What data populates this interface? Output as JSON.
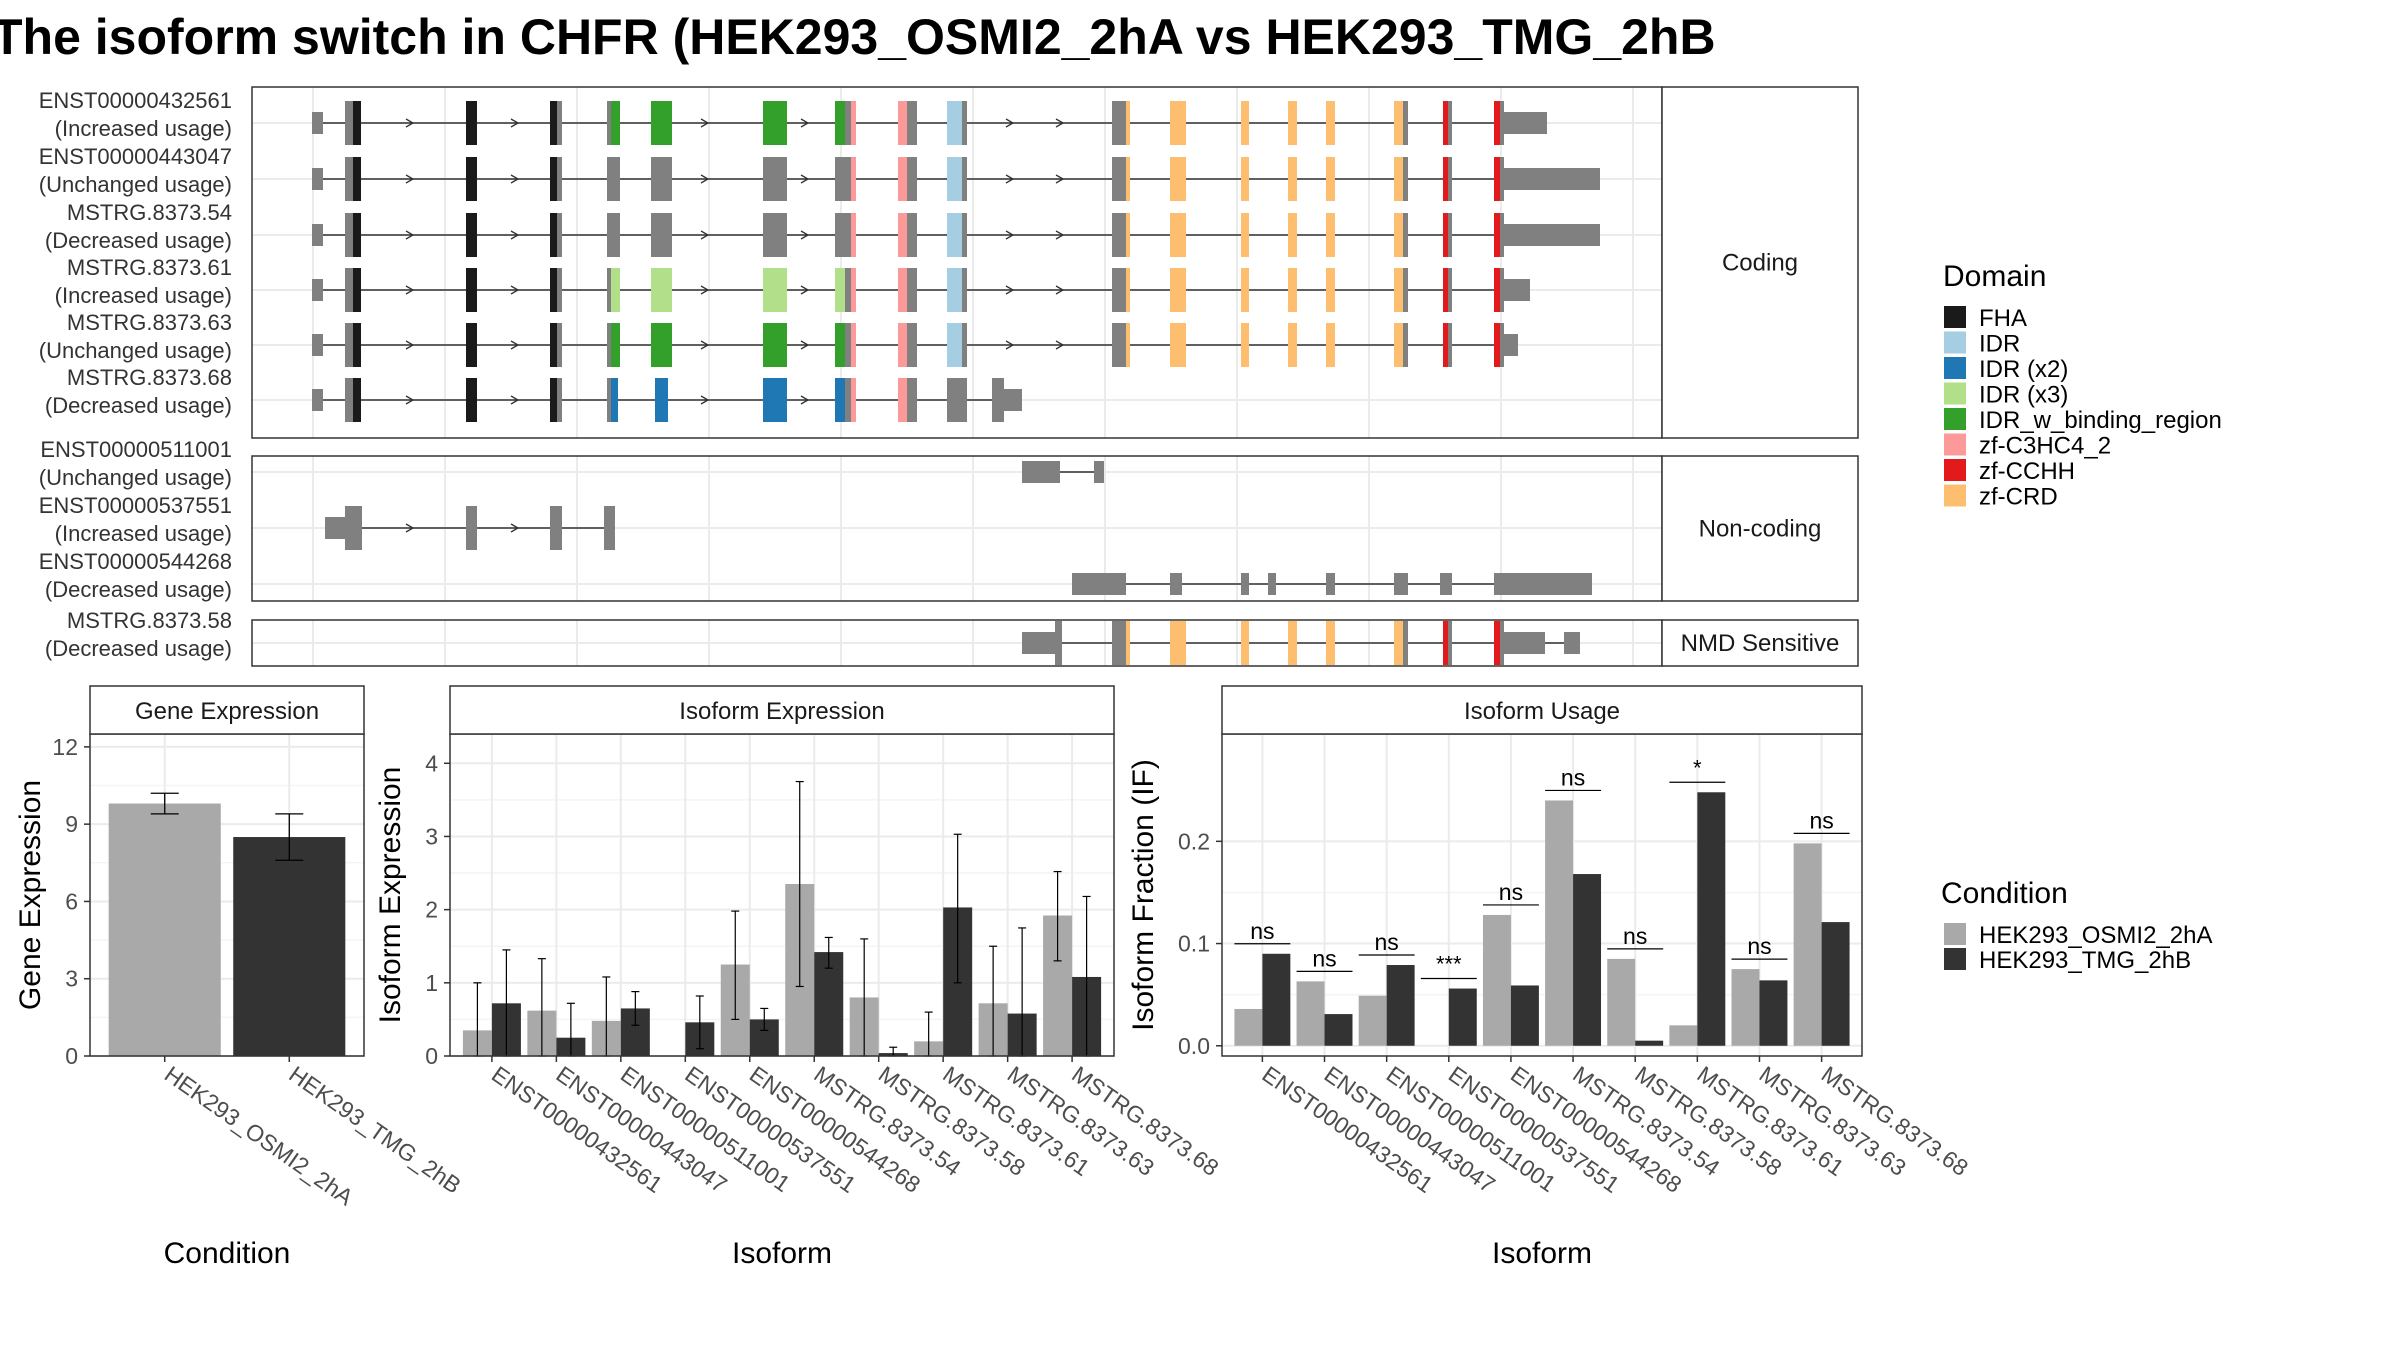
{
  "title": "The isoform switch in CHFR (HEK293_OSMI2_2hA vs HEK293_TMG_2hB",
  "colors": {
    "FHA": "#1a1a1a",
    "IDR": "#a6cee3",
    "IDR (x2)": "#1f78b4",
    "IDR (x3)": "#b2df8a",
    "IDR_w_binding_region": "#33a02c",
    "zf-C3HC4_2": "#fb9a99",
    "zf-CCHH": "#e31a1c",
    "zf-CRD": "#fdbf6f",
    "noncoding": "#808080",
    "cond1": "#a9a9a9",
    "cond2": "#333333"
  },
  "legend_domain": {
    "title": "Domain",
    "items": [
      "FHA",
      "IDR",
      "IDR (x2)",
      "IDR (x3)",
      "IDR_w_binding_region",
      "zf-C3HC4_2",
      "zf-CCHH",
      "zf-CRD"
    ]
  },
  "legend_condition": {
    "title": "Condition",
    "items": [
      "HEK293_OSMI2_2hA",
      "HEK293_TMG_2hB"
    ]
  },
  "transcript_panels": [
    {
      "strip": "Coding",
      "transcripts": [
        {
          "id": "ENST00000432561",
          "usage": "(Increased usage)",
          "domain_set": "full"
        },
        {
          "id": "ENST00000443047",
          "usage": "(Unchanged usage)",
          "domain_set": "partial"
        },
        {
          "id": "MSTRG.8373.54",
          "usage": "(Decreased usage)",
          "domain_set": "partial"
        },
        {
          "id": "MSTRG.8373.61",
          "usage": "(Increased usage)",
          "domain_set": "x3"
        },
        {
          "id": "MSTRG.8373.63",
          "usage": "(Unchanged usage)",
          "domain_set": "full"
        },
        {
          "id": "MSTRG.8373.68",
          "usage": "(Decreased usage)",
          "domain_set": "x2"
        }
      ]
    },
    {
      "strip": "Non-coding",
      "transcripts": [
        {
          "id": "ENST00000511001",
          "usage": "(Unchanged usage)"
        },
        {
          "id": "ENST00000537551",
          "usage": "(Increased usage)"
        },
        {
          "id": "ENST00000544268",
          "usage": "(Decreased usage)"
        }
      ]
    },
    {
      "strip": "NMD Sensitive",
      "transcripts": [
        {
          "id": "MSTRG.8373.58",
          "usage": "(Decreased usage)"
        }
      ]
    }
  ],
  "chart_data": [
    {
      "type": "bar",
      "title": "Gene Expression",
      "xlabel": "Condition",
      "ylabel": "Gene Expression",
      "ylim": [
        0,
        12.5
      ],
      "yticks": [
        0,
        3,
        6,
        9,
        12
      ],
      "categories": [
        "HEK293_OSMI2_2hA",
        "HEK293_TMG_2hB"
      ],
      "values": [
        9.8,
        8.5
      ],
      "error_low": [
        9.4,
        7.6
      ],
      "error_high": [
        10.2,
        9.4
      ]
    },
    {
      "type": "bar",
      "title": "Isoform Expression",
      "xlabel": "Isoform",
      "ylabel": "Isoform Expression",
      "ylim": [
        0,
        4.4
      ],
      "yticks": [
        0,
        1,
        2,
        3,
        4
      ],
      "categories": [
        "ENST00000432561",
        "ENST00000443047",
        "ENST00000511001",
        "ENST00000537551",
        "ENST00000544268",
        "MSTRG.8373.54",
        "MSTRG.8373.58",
        "MSTRG.8373.61",
        "MSTRG.8373.63",
        "MSTRG.8373.68"
      ],
      "series": [
        {
          "name": "HEK293_OSMI2_2hA",
          "values": [
            0.35,
            0.62,
            0.48,
            0.0,
            1.25,
            2.35,
            0.8,
            0.2,
            0.72,
            1.92
          ],
          "error_low": [
            0.0,
            0.0,
            0.0,
            0.0,
            0.5,
            0.95,
            0.0,
            0.0,
            0.0,
            1.3
          ],
          "error_high": [
            1.0,
            1.33,
            1.08,
            0.0,
            1.98,
            3.75,
            1.6,
            0.6,
            1.5,
            2.52
          ]
        },
        {
          "name": "HEK293_TMG_2hB",
          "values": [
            0.72,
            0.25,
            0.65,
            0.46,
            0.5,
            1.42,
            0.04,
            2.03,
            0.58,
            1.08
          ],
          "error_low": [
            0.0,
            0.0,
            0.42,
            0.1,
            0.35,
            1.2,
            0.0,
            1.0,
            0.0,
            0.0
          ],
          "error_high": [
            1.45,
            0.72,
            0.88,
            0.82,
            0.65,
            1.62,
            0.12,
            3.03,
            1.75,
            2.18
          ]
        }
      ]
    },
    {
      "type": "bar",
      "title": "Isoform Usage",
      "xlabel": "Isoform",
      "ylabel": "Isoform Fraction (IF)",
      "ylim": [
        -0.01,
        0.305
      ],
      "yticks": [
        0.0,
        0.1,
        0.2
      ],
      "ytick_labels": [
        "0.0",
        "0.1",
        "0.2"
      ],
      "categories": [
        "ENST00000432561",
        "ENST00000443047",
        "ENST00000511001",
        "ENST00000537551",
        "ENST00000544268",
        "MSTRG.8373.54",
        "MSTRG.8373.58",
        "MSTRG.8373.61",
        "MSTRG.8373.63",
        "MSTRG.8373.68"
      ],
      "series": [
        {
          "name": "HEK293_OSMI2_2hA",
          "values": [
            0.036,
            0.063,
            0.049,
            0.0,
            0.128,
            0.24,
            0.085,
            0.02,
            0.075,
            0.198
          ]
        },
        {
          "name": "HEK293_TMG_2hB",
          "values": [
            0.09,
            0.031,
            0.079,
            0.056,
            0.059,
            0.168,
            0.005,
            0.248,
            0.064,
            0.121
          ]
        }
      ],
      "significance": [
        "ns",
        "ns",
        "ns",
        "***",
        "ns",
        "ns",
        "ns",
        "*",
        "ns",
        "ns"
      ]
    }
  ]
}
